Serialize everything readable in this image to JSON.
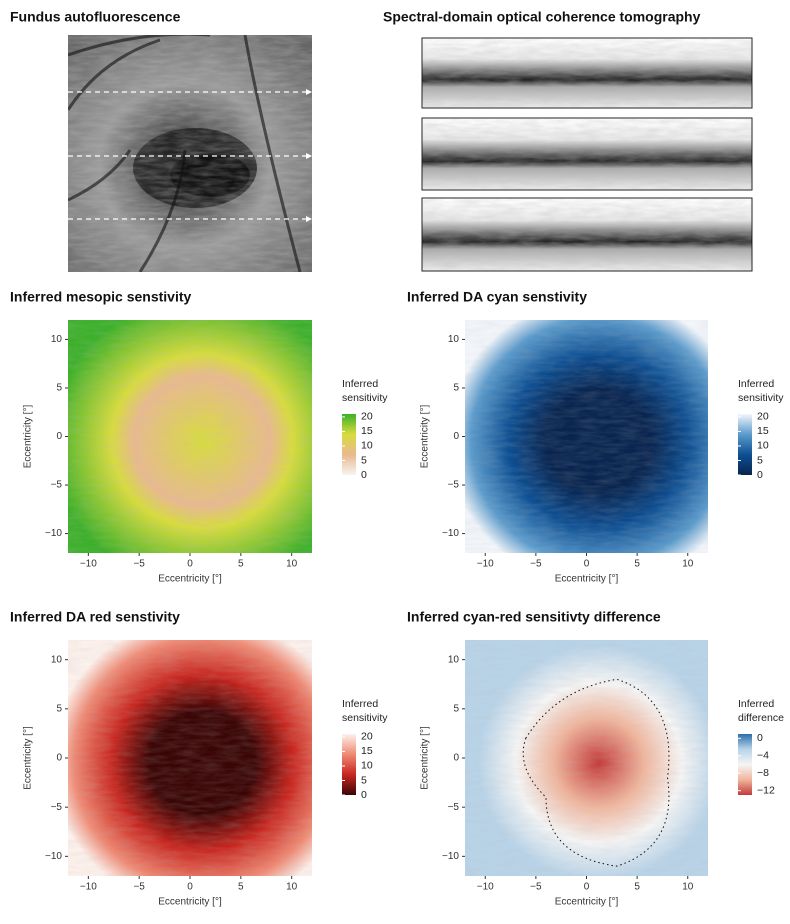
{
  "panels": {
    "fundus": {
      "title": "Fundus autofluorescence"
    },
    "oct": {
      "title": "Spectral-domain optical coherence tomography"
    }
  },
  "chart_data": [
    {
      "type": "heatmap",
      "title": "Inferred mesopic senstivity",
      "xlabel": "Eccentricity [°]",
      "ylabel": "Eccentricity [°]",
      "xlim": [
        -12,
        12
      ],
      "ylim": [
        -12,
        12
      ],
      "xticks": [
        {
          "value": -10,
          "label": "−10"
        },
        {
          "value": -5,
          "label": "−5"
        },
        0,
        5,
        10
      ],
      "yticks": [
        {
          "value": -10,
          "label": "−10"
        },
        {
          "value": -5,
          "label": "−5"
        },
        0,
        5,
        10
      ],
      "colorbar_title": [
        "Inferred",
        "sensitivity"
      ],
      "clim": [
        0,
        21
      ],
      "colorbar_ticks": [
        0,
        5,
        10,
        15,
        20
      ],
      "colors": [
        "#f7f4f0",
        "#e9b98f",
        "#d8dc3c",
        "#3cb02a"
      ]
    },
    {
      "type": "heatmap",
      "title": "Inferred DA cyan senstivity",
      "xlabel": "Eccentricity [°]",
      "ylabel": "Eccentricity [°]",
      "xlim": [
        -12,
        12
      ],
      "ylim": [
        -12,
        12
      ],
      "xticks": [
        {
          "value": -10,
          "label": "−10"
        },
        {
          "value": -5,
          "label": "−5"
        },
        0,
        5,
        10
      ],
      "yticks": [
        {
          "value": -10,
          "label": "−10"
        },
        {
          "value": -5,
          "label": "−5"
        },
        0,
        5,
        10
      ],
      "colorbar_title": [
        "Inferred",
        "sensitivity"
      ],
      "clim": [
        0,
        21
      ],
      "colorbar_ticks": [
        0,
        5,
        10,
        15,
        20
      ],
      "colors": [
        "#08244f",
        "#0d4f93",
        "#5b9bcc",
        "#f2f6fb"
      ]
    },
    {
      "type": "heatmap",
      "title": "Inferred DA red senstivity",
      "xlabel": "Eccentricity [°]",
      "ylabel": "Eccentricity [°]",
      "xlim": [
        -12,
        12
      ],
      "ylim": [
        -12,
        12
      ],
      "xticks": [
        {
          "value": -10,
          "label": "−10"
        },
        {
          "value": -5,
          "label": "−5"
        },
        0,
        5,
        10
      ],
      "yticks": [
        {
          "value": -10,
          "label": "−10"
        },
        {
          "value": -5,
          "label": "−5"
        },
        0,
        5,
        10
      ],
      "colorbar_title": [
        "Inferred",
        "sensitivity"
      ],
      "clim": [
        0,
        21
      ],
      "colorbar_ticks": [
        0,
        5,
        10,
        15,
        20
      ],
      "colors": [
        "#3a0505",
        "#c8261f",
        "#ef8a74",
        "#fdf1ec"
      ]
    },
    {
      "type": "heatmap",
      "title": "Inferred cyan-red sensitivty difference",
      "xlabel": "Eccentricity [°]",
      "ylabel": "Eccentricity [°]",
      "xlim": [
        -12,
        12
      ],
      "ylim": [
        -12,
        12
      ],
      "xticks": [
        {
          "value": -10,
          "label": "−10"
        },
        {
          "value": -5,
          "label": "−5"
        },
        0,
        5,
        10
      ],
      "yticks": [
        {
          "value": -10,
          "label": "−10"
        },
        {
          "value": -5,
          "label": "−5"
        },
        0,
        5,
        10
      ],
      "colorbar_title": [
        "Inferred",
        "difference"
      ],
      "clim": [
        -13,
        1
      ],
      "colorbar_ticks": [
        {
          "value": -12,
          "label": "−12"
        },
        {
          "value": -8,
          "label": "−8"
        },
        {
          "value": -4,
          "label": "−4"
        },
        0
      ],
      "colors": [
        "#c33a3a",
        "#f0b59c",
        "#f5f5f5",
        "#b8d3e8",
        "#2c6fac"
      ]
    }
  ]
}
